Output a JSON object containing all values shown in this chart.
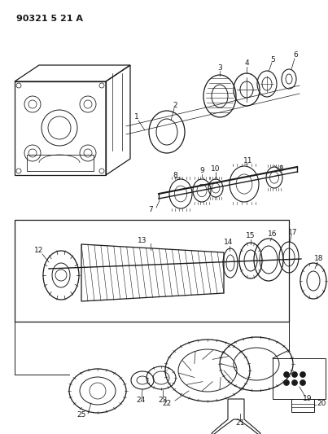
{
  "title": "90321 5 21 A",
  "bg_color": "#ffffff",
  "line_color": "#1a1a1a",
  "fig_width": 4.03,
  "fig_height": 5.33,
  "dpi": 100
}
